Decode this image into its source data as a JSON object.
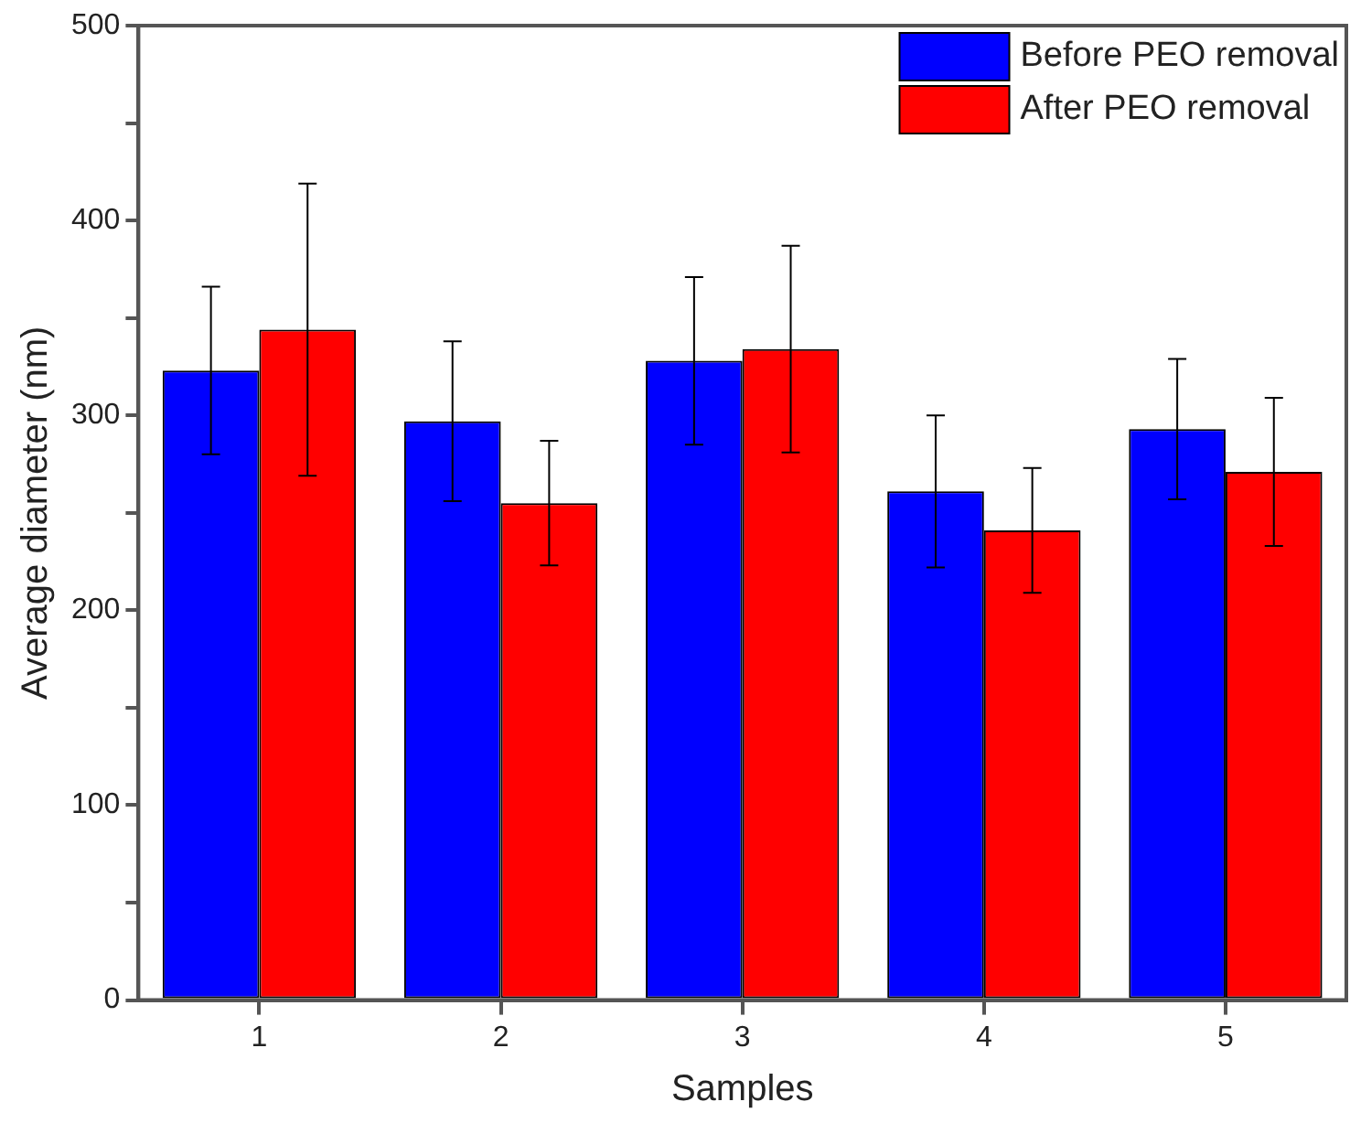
{
  "chart_data": {
    "type": "bar",
    "xlabel": "Samples",
    "ylabel": "Average diameter (nm)",
    "categories": [
      "1",
      "2",
      "3",
      "4",
      "5"
    ],
    "series": [
      {
        "name": "Before PEO removal",
        "color": "#0000ff",
        "values": [
          323,
          297,
          328,
          261,
          293
        ],
        "errors": [
          43,
          41,
          43,
          39,
          36
        ]
      },
      {
        "name": "After PEO removal",
        "color": "#ff0000",
        "values": [
          344,
          255,
          334,
          241,
          271
        ],
        "errors": [
          75,
          32,
          53,
          32,
          38
        ]
      }
    ],
    "ylim": [
      0,
      500
    ],
    "yticks": [
      0,
      {
        "value": 50,
        "label": null
      },
      100,
      {
        "value": 150,
        "label": null
      },
      200,
      {
        "value": 250,
        "label": null
      },
      300,
      {
        "value": 350,
        "label": null
      },
      400,
      {
        "value": 450,
        "label": null
      },
      500
    ],
    "grid": false,
    "legend": "top right"
  }
}
